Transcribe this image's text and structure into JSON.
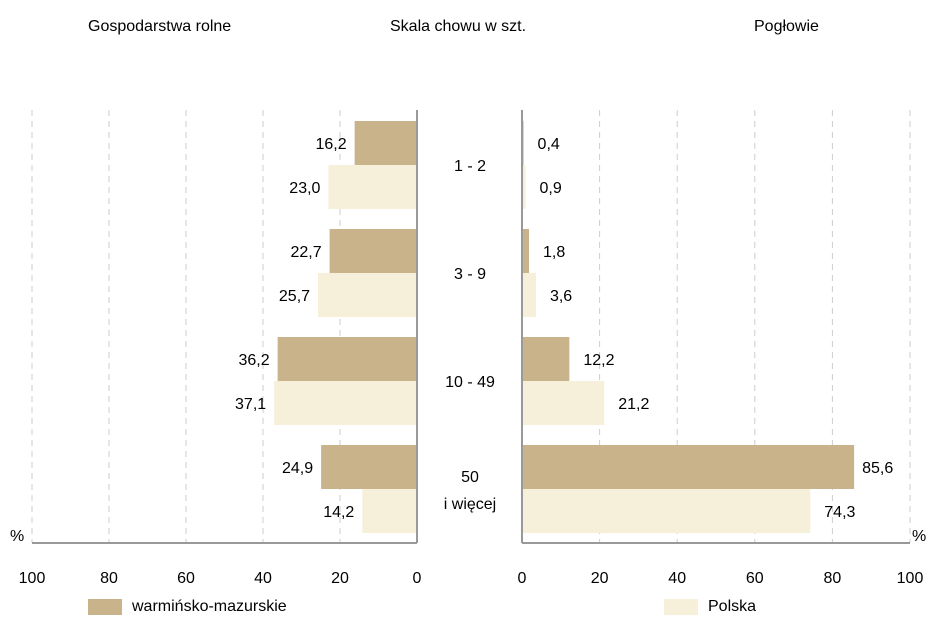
{
  "chart_data": {
    "type": "bar",
    "orientation": "horizontal-butterfly",
    "titles": {
      "left": "Gospodarstwa rolne",
      "center": "Skala chowu w szt.",
      "right": "Pogłowie"
    },
    "categories": [
      [
        "1 - 2"
      ],
      [
        "3 - 9"
      ],
      [
        "10 - 49"
      ],
      [
        "50",
        "i więcej"
      ]
    ],
    "panels": [
      {
        "name": "Gospodarstwa rolne",
        "series": [
          {
            "name": "warmińsko-mazurskie",
            "values": [
              16.2,
              22.7,
              36.2,
              24.9
            ]
          },
          {
            "name": "Polska",
            "values": [
              23.0,
              25.7,
              37.1,
              14.2
            ]
          }
        ],
        "xlim": [
          0,
          100
        ],
        "ticks": [
          "100",
          "80",
          "60",
          "40",
          "20",
          "0"
        ],
        "unit": "%",
        "reversed": true
      },
      {
        "name": "Pogłowie",
        "series": [
          {
            "name": "warmińsko-mazurskie",
            "values": [
              0.4,
              1.8,
              12.2,
              85.6
            ]
          },
          {
            "name": "Polska",
            "values": [
              0.9,
              3.6,
              21.2,
              74.3
            ]
          }
        ],
        "xlim": [
          0,
          100
        ],
        "ticks": [
          "0",
          "20",
          "40",
          "60",
          "80",
          "100"
        ],
        "unit": "%",
        "reversed": false
      }
    ],
    "value_labels": {
      "left": [
        [
          "16,2",
          "23,0"
        ],
        [
          "22,7",
          "25,7"
        ],
        [
          "36,2",
          "37,1"
        ],
        [
          "24,9",
          "14,2"
        ]
      ],
      "right": [
        [
          "0,4",
          "0,9"
        ],
        [
          "1,8",
          "3,6"
        ],
        [
          "12,2",
          "21,2"
        ],
        [
          "85,6",
          "74,3"
        ]
      ]
    },
    "grid": "vertical-dashed",
    "legend_position": "bottom",
    "colors": {
      "warmińsko-mazurskie": "#c8b38a",
      "Polska": "#f6efd9",
      "axis": "#999999",
      "grid": "#cccccc"
    }
  }
}
